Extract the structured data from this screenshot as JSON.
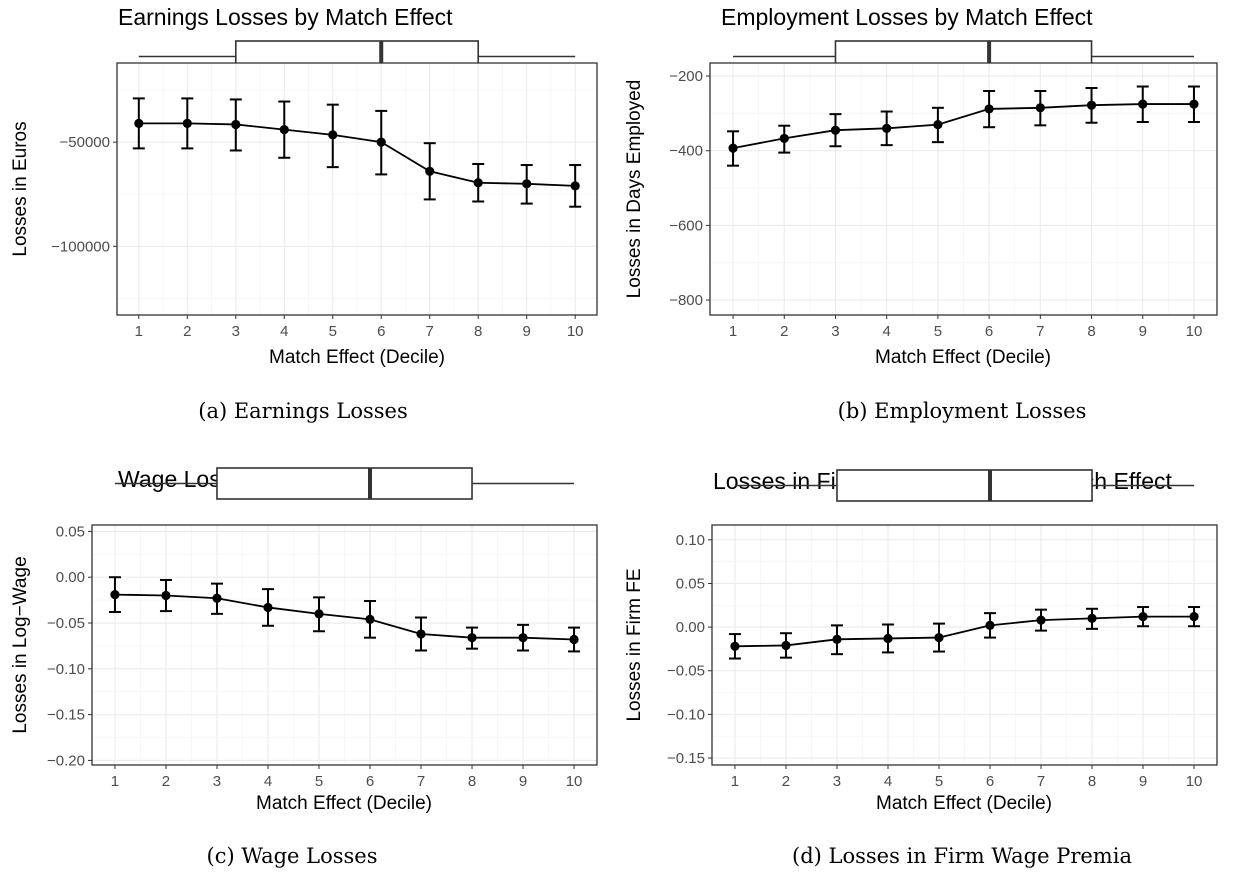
{
  "chart_data": [
    {
      "type": "line",
      "title": "Earnings Losses by Match Effect",
      "xlabel": "Match Effect (Decile)",
      "ylabel": "Losses in Euros",
      "caption": "(a) Earnings Losses",
      "x": [
        1,
        2,
        3,
        4,
        5,
        6,
        7,
        8,
        9,
        10
      ],
      "xticks": [
        "1",
        "2",
        "3",
        "4",
        "5",
        "6",
        "7",
        "8",
        "9",
        "10"
      ],
      "xlim": [
        0.55,
        10.45
      ],
      "ylim": [
        -133000,
        -12000
      ],
      "yticks": [
        {
          "value": -50000,
          "label": "−50000"
        },
        {
          "value": -100000,
          "label": "−100000"
        }
      ],
      "ygrid_minor": [
        -25000,
        -75000,
        -125000
      ],
      "series": [
        {
          "values": [
            -41000,
            -41000,
            -41500,
            -44000,
            -46500,
            -50000,
            -64000,
            -69500,
            -70000,
            -71000
          ],
          "lower": [
            -53000,
            -53000,
            -54000,
            -57500,
            -62000,
            -65500,
            -77500,
            -78500,
            -79500,
            -81000
          ],
          "upper": [
            -29000,
            -29000,
            -29500,
            -30500,
            -32000,
            -35000,
            -50500,
            -60500,
            -61000,
            -61000
          ]
        }
      ],
      "boxplot": {
        "whisker_low": 1,
        "q1": 3,
        "median": 6,
        "q3": 8,
        "whisker_high": 10
      },
      "grid": true
    },
    {
      "type": "line",
      "title": "Employment Losses by Match Effect",
      "xlabel": "Match Effect (Decile)",
      "ylabel": "Losses in Days Employed",
      "caption": "(b) Employment Losses",
      "x": [
        1,
        2,
        3,
        4,
        5,
        6,
        7,
        8,
        9,
        10
      ],
      "xticks": [
        "1",
        "2",
        "3",
        "4",
        "5",
        "6",
        "7",
        "8",
        "9",
        "10"
      ],
      "xlim": [
        0.55,
        10.45
      ],
      "ylim": [
        -840,
        -165
      ],
      "yticks": [
        {
          "value": -200,
          "label": "−200"
        },
        {
          "value": -400,
          "label": "−400"
        },
        {
          "value": -600,
          "label": "−600"
        },
        {
          "value": -800,
          "label": "−800"
        }
      ],
      "ygrid_minor": [
        -300,
        -500,
        -700
      ],
      "series": [
        {
          "values": [
            -393,
            -367,
            -345,
            -340,
            -330,
            -288,
            -285,
            -278,
            -275,
            -275
          ],
          "lower": [
            -440,
            -405,
            -388,
            -385,
            -377,
            -337,
            -332,
            -325,
            -323,
            -323
          ],
          "upper": [
            -348,
            -333,
            -302,
            -295,
            -285,
            -240,
            -240,
            -232,
            -228,
            -228
          ]
        }
      ],
      "boxplot": {
        "whisker_low": 1,
        "q1": 3,
        "median": 6,
        "q3": 8,
        "whisker_high": 10
      },
      "grid": true
    },
    {
      "type": "line",
      "title": "Wage Losses by Match Effect",
      "xlabel": "Match Effect (Decile)",
      "ylabel": "Losses in Log−Wage",
      "caption": "(c) Wage Losses",
      "x": [
        1,
        2,
        3,
        4,
        5,
        6,
        7,
        8,
        9,
        10
      ],
      "xticks": [
        "1",
        "2",
        "3",
        "4",
        "5",
        "6",
        "7",
        "8",
        "9",
        "10"
      ],
      "xlim": [
        0.55,
        10.45
      ],
      "ylim": [
        -0.205,
        0.057
      ],
      "yticks": [
        {
          "value": 0.05,
          "label": "0.05"
        },
        {
          "value": 0.0,
          "label": "0.00"
        },
        {
          "value": -0.05,
          "label": "−0.05"
        },
        {
          "value": -0.1,
          "label": "−0.10"
        },
        {
          "value": -0.15,
          "label": "−0.15"
        },
        {
          "value": -0.2,
          "label": "−0.20"
        }
      ],
      "ygrid_minor": [
        0.025,
        -0.025,
        -0.075,
        -0.125,
        -0.175
      ],
      "series": [
        {
          "values": [
            -0.019,
            -0.02,
            -0.023,
            -0.033,
            -0.04,
            -0.046,
            -0.062,
            -0.066,
            -0.066,
            -0.068
          ],
          "lower": [
            -0.038,
            -0.037,
            -0.04,
            -0.053,
            -0.059,
            -0.066,
            -0.08,
            -0.078,
            -0.08,
            -0.081
          ],
          "upper": [
            0.0,
            -0.003,
            -0.007,
            -0.013,
            -0.022,
            -0.026,
            -0.044,
            -0.055,
            -0.052,
            -0.055
          ]
        }
      ],
      "boxplot": {
        "whisker_low": 1,
        "q1": 3,
        "median": 6,
        "q3": 8,
        "whisker_high": 10
      },
      "grid": true
    },
    {
      "type": "line",
      "title": "Losses in Firm Wage Premia by Match Effect",
      "xlabel": "Match Effect (Decile)",
      "ylabel": "Losses in Firm FE",
      "caption": "(d) Losses in Firm Wage Premia",
      "x": [
        1,
        2,
        3,
        4,
        5,
        6,
        7,
        8,
        9,
        10
      ],
      "xticks": [
        "1",
        "2",
        "3",
        "4",
        "5",
        "6",
        "7",
        "8",
        "9",
        "10"
      ],
      "xlim": [
        0.55,
        10.45
      ],
      "ylim": [
        -0.158,
        0.117
      ],
      "yticks": [
        {
          "value": 0.1,
          "label": "0.10"
        },
        {
          "value": 0.05,
          "label": "0.05"
        },
        {
          "value": 0.0,
          "label": "0.00"
        },
        {
          "value": -0.05,
          "label": "−0.05"
        },
        {
          "value": -0.1,
          "label": "−0.10"
        },
        {
          "value": -0.15,
          "label": "−0.15"
        }
      ],
      "ygrid_minor": [
        0.075,
        0.025,
        -0.025,
        -0.075,
        -0.125
      ],
      "series": [
        {
          "values": [
            -0.022,
            -0.021,
            -0.014,
            -0.013,
            -0.012,
            0.002,
            0.008,
            0.01,
            0.012,
            0.012
          ],
          "lower": [
            -0.036,
            -0.035,
            -0.031,
            -0.029,
            -0.028,
            -0.012,
            -0.004,
            -0.002,
            0.001,
            0.001
          ],
          "upper": [
            -0.008,
            -0.007,
            0.002,
            0.003,
            0.004,
            0.016,
            0.02,
            0.021,
            0.023,
            0.023
          ]
        }
      ],
      "boxplot": {
        "whisker_low": 1,
        "q1": 3,
        "median": 6,
        "q3": 8,
        "whisker_high": 10
      },
      "grid": true
    }
  ]
}
